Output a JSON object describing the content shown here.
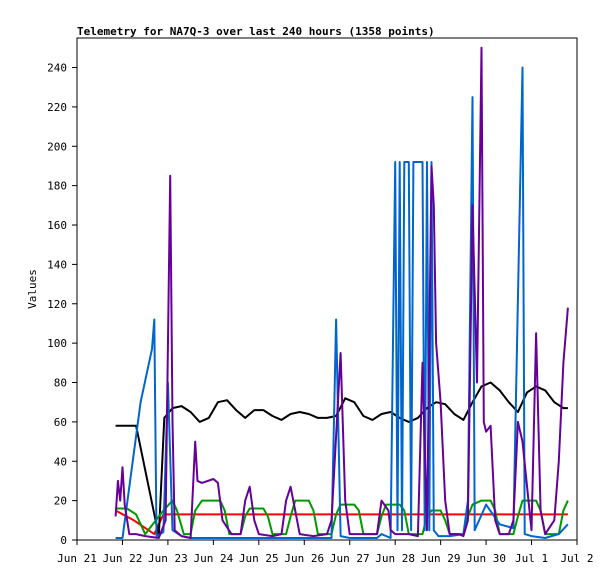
{
  "chart_data": {
    "type": "line",
    "title": "Telemetry for NA7Q-3 over last 240 hours (1358 points)",
    "xlabel": "",
    "ylabel": "Values",
    "ylim": [
      0,
      255
    ],
    "xlim": [
      0,
      11
    ],
    "y_ticks": [
      0,
      20,
      40,
      60,
      80,
      100,
      120,
      140,
      160,
      180,
      200,
      220,
      240
    ],
    "x_ticks": [
      {
        "value": 0,
        "label": "Jun 21"
      },
      {
        "value": 1,
        "label": "Jun 22"
      },
      {
        "value": 2,
        "label": "Jun 23"
      },
      {
        "value": 3,
        "label": "Jun 24"
      },
      {
        "value": 4,
        "label": "Jun 25"
      },
      {
        "value": 5,
        "label": "Jun 26"
      },
      {
        "value": 6,
        "label": "Jun 27"
      },
      {
        "value": 7,
        "label": "Jun 28"
      },
      {
        "value": 8,
        "label": "Jun 29"
      },
      {
        "value": 9,
        "label": "Jun 30"
      },
      {
        "value": 10,
        "label": "Jul 1"
      },
      {
        "value": 11,
        "label": "Jul 2"
      }
    ],
    "grid": false,
    "series": [
      {
        "color": "#ff0000",
        "values": [
          [
            0.85,
            15
          ],
          [
            1.25,
            10
          ],
          [
            1.7,
            3
          ],
          [
            1.9,
            13
          ],
          [
            10.8,
            13
          ]
        ]
      },
      {
        "color": "#000000",
        "values": [
          [
            0.85,
            58
          ],
          [
            1.3,
            58
          ],
          [
            1.8,
            2
          ],
          [
            1.92,
            62
          ],
          [
            2.1,
            67
          ],
          [
            2.3,
            68
          ],
          [
            2.5,
            65
          ],
          [
            2.7,
            60
          ],
          [
            2.9,
            62
          ],
          [
            3.1,
            70
          ],
          [
            3.3,
            71
          ],
          [
            3.5,
            66
          ],
          [
            3.7,
            62
          ],
          [
            3.9,
            66
          ],
          [
            4.1,
            66
          ],
          [
            4.3,
            63
          ],
          [
            4.5,
            61
          ],
          [
            4.7,
            64
          ],
          [
            4.9,
            65
          ],
          [
            5.1,
            64
          ],
          [
            5.3,
            62
          ],
          [
            5.5,
            62
          ],
          [
            5.7,
            63
          ],
          [
            5.9,
            72
          ],
          [
            6.1,
            70
          ],
          [
            6.3,
            63
          ],
          [
            6.5,
            61
          ],
          [
            6.7,
            64
          ],
          [
            6.9,
            65
          ],
          [
            7.1,
            62
          ],
          [
            7.3,
            60
          ],
          [
            7.5,
            62
          ],
          [
            7.7,
            67
          ],
          [
            7.9,
            70
          ],
          [
            8.1,
            69
          ],
          [
            8.3,
            64
          ],
          [
            8.5,
            61
          ],
          [
            8.7,
            70
          ],
          [
            8.9,
            78
          ],
          [
            9.1,
            80
          ],
          [
            9.3,
            76
          ],
          [
            9.5,
            70
          ],
          [
            9.7,
            65
          ],
          [
            9.9,
            75
          ],
          [
            10.1,
            78
          ],
          [
            10.3,
            76
          ],
          [
            10.5,
            70
          ],
          [
            10.7,
            67
          ],
          [
            10.8,
            67
          ]
        ]
      },
      {
        "color": "#009900",
        "values": [
          [
            0.85,
            16
          ],
          [
            1.1,
            16
          ],
          [
            1.3,
            13
          ],
          [
            1.5,
            3
          ],
          [
            1.9,
            15
          ],
          [
            2.1,
            20
          ],
          [
            2.2,
            15
          ],
          [
            2.35,
            3
          ],
          [
            2.5,
            3
          ],
          [
            2.6,
            15
          ],
          [
            2.75,
            20
          ],
          [
            3.15,
            20
          ],
          [
            3.25,
            15
          ],
          [
            3.35,
            3
          ],
          [
            3.6,
            3
          ],
          [
            3.7,
            12
          ],
          [
            3.8,
            16
          ],
          [
            4.1,
            16
          ],
          [
            4.2,
            12
          ],
          [
            4.3,
            3
          ],
          [
            4.6,
            3
          ],
          [
            4.7,
            12
          ],
          [
            4.8,
            20
          ],
          [
            5.1,
            20
          ],
          [
            5.2,
            15
          ],
          [
            5.3,
            3
          ],
          [
            5.6,
            3
          ],
          [
            5.7,
            13
          ],
          [
            5.8,
            18
          ],
          [
            6.1,
            18
          ],
          [
            6.2,
            15
          ],
          [
            6.3,
            3
          ],
          [
            6.6,
            3
          ],
          [
            6.7,
            12
          ],
          [
            6.8,
            18
          ],
          [
            7.1,
            18
          ],
          [
            7.2,
            15
          ],
          [
            7.3,
            3
          ],
          [
            7.6,
            3
          ],
          [
            7.7,
            12
          ],
          [
            7.8,
            15
          ],
          [
            8.0,
            15
          ],
          [
            8.1,
            10
          ],
          [
            8.2,
            3
          ],
          [
            8.5,
            3
          ],
          [
            8.6,
            12
          ],
          [
            8.7,
            18
          ],
          [
            8.9,
            20
          ],
          [
            9.1,
            20
          ],
          [
            9.2,
            15
          ],
          [
            9.3,
            3
          ],
          [
            9.6,
            3
          ],
          [
            9.7,
            12
          ],
          [
            9.8,
            20
          ],
          [
            10.1,
            20
          ],
          [
            10.2,
            15
          ],
          [
            10.3,
            3
          ],
          [
            10.6,
            3
          ],
          [
            10.7,
            15
          ],
          [
            10.8,
            20
          ]
        ]
      },
      {
        "color": "#0066cc",
        "values": [
          [
            0.85,
            1
          ],
          [
            1.0,
            1
          ],
          [
            1.4,
            70
          ],
          [
            1.65,
            97
          ],
          [
            1.7,
            112
          ],
          [
            1.75,
            2
          ],
          [
            1.9,
            4
          ],
          [
            2.0,
            80
          ],
          [
            2.1,
            5
          ],
          [
            2.3,
            2
          ],
          [
            2.5,
            1
          ],
          [
            5.2,
            1
          ],
          [
            5.6,
            1
          ],
          [
            5.7,
            112
          ],
          [
            5.8,
            2
          ],
          [
            6.0,
            1
          ],
          [
            6.6,
            1
          ],
          [
            6.7,
            3
          ],
          [
            6.9,
            1
          ],
          [
            7.0,
            192
          ],
          [
            7.05,
            5
          ],
          [
            7.1,
            192
          ],
          [
            7.15,
            5
          ],
          [
            7.2,
            192
          ],
          [
            7.3,
            192
          ],
          [
            7.35,
            5
          ],
          [
            7.4,
            192
          ],
          [
            7.6,
            192
          ],
          [
            7.65,
            5
          ],
          [
            7.7,
            192
          ],
          [
            7.75,
            5
          ],
          [
            7.8,
            192
          ],
          [
            7.85,
            5
          ],
          [
            7.95,
            2
          ],
          [
            8.2,
            2
          ],
          [
            8.5,
            3
          ],
          [
            8.6,
            20
          ],
          [
            8.7,
            225
          ],
          [
            8.75,
            5
          ],
          [
            9.0,
            18
          ],
          [
            9.3,
            8
          ],
          [
            9.6,
            6
          ],
          [
            9.8,
            240
          ],
          [
            9.85,
            3
          ],
          [
            10.0,
            2
          ],
          [
            10.3,
            1
          ],
          [
            10.6,
            3
          ],
          [
            10.8,
            8
          ]
        ]
      },
      {
        "color": "#660099",
        "values": [
          [
            0.85,
            12
          ],
          [
            0.9,
            30
          ],
          [
            0.95,
            20
          ],
          [
            1.0,
            37
          ],
          [
            1.05,
            18
          ],
          [
            1.15,
            3
          ],
          [
            1.3,
            3
          ],
          [
            1.5,
            2
          ],
          [
            1.8,
            1
          ],
          [
            1.95,
            10
          ],
          [
            2.05,
            185
          ],
          [
            2.1,
            60
          ],
          [
            2.15,
            5
          ],
          [
            2.3,
            2
          ],
          [
            2.5,
            1
          ],
          [
            2.6,
            50
          ],
          [
            2.65,
            30
          ],
          [
            2.75,
            29
          ],
          [
            3.0,
            31
          ],
          [
            3.1,
            29
          ],
          [
            3.2,
            10
          ],
          [
            3.4,
            3
          ],
          [
            3.6,
            3
          ],
          [
            3.7,
            20
          ],
          [
            3.8,
            27
          ],
          [
            3.9,
            10
          ],
          [
            4.0,
            3
          ],
          [
            4.3,
            2
          ],
          [
            4.5,
            3
          ],
          [
            4.6,
            20
          ],
          [
            4.7,
            27
          ],
          [
            4.8,
            15
          ],
          [
            4.9,
            3
          ],
          [
            5.2,
            2
          ],
          [
            5.5,
            3
          ],
          [
            5.6,
            10
          ],
          [
            5.8,
            95
          ],
          [
            5.9,
            20
          ],
          [
            6.0,
            3
          ],
          [
            6.3,
            3
          ],
          [
            6.6,
            3
          ],
          [
            6.7,
            20
          ],
          [
            6.85,
            15
          ],
          [
            6.9,
            5
          ],
          [
            7.0,
            3
          ],
          [
            7.3,
            3
          ],
          [
            7.5,
            2
          ],
          [
            7.6,
            90
          ],
          [
            7.7,
            5
          ],
          [
            7.8,
            190
          ],
          [
            7.85,
            170
          ],
          [
            7.9,
            100
          ],
          [
            8.0,
            70
          ],
          [
            8.1,
            20
          ],
          [
            8.2,
            3
          ],
          [
            8.4,
            3
          ],
          [
            8.5,
            2
          ],
          [
            8.6,
            10
          ],
          [
            8.7,
            170
          ],
          [
            8.8,
            80
          ],
          [
            8.9,
            250
          ],
          [
            8.95,
            60
          ],
          [
            9.0,
            55
          ],
          [
            9.1,
            58
          ],
          [
            9.2,
            10
          ],
          [
            9.3,
            3
          ],
          [
            9.5,
            3
          ],
          [
            9.6,
            10
          ],
          [
            9.7,
            60
          ],
          [
            9.8,
            50
          ],
          [
            10.0,
            5
          ],
          [
            10.1,
            105
          ],
          [
            10.2,
            15
          ],
          [
            10.3,
            3
          ],
          [
            10.5,
            10
          ],
          [
            10.6,
            40
          ],
          [
            10.7,
            90
          ],
          [
            10.8,
            118
          ]
        ]
      }
    ]
  }
}
